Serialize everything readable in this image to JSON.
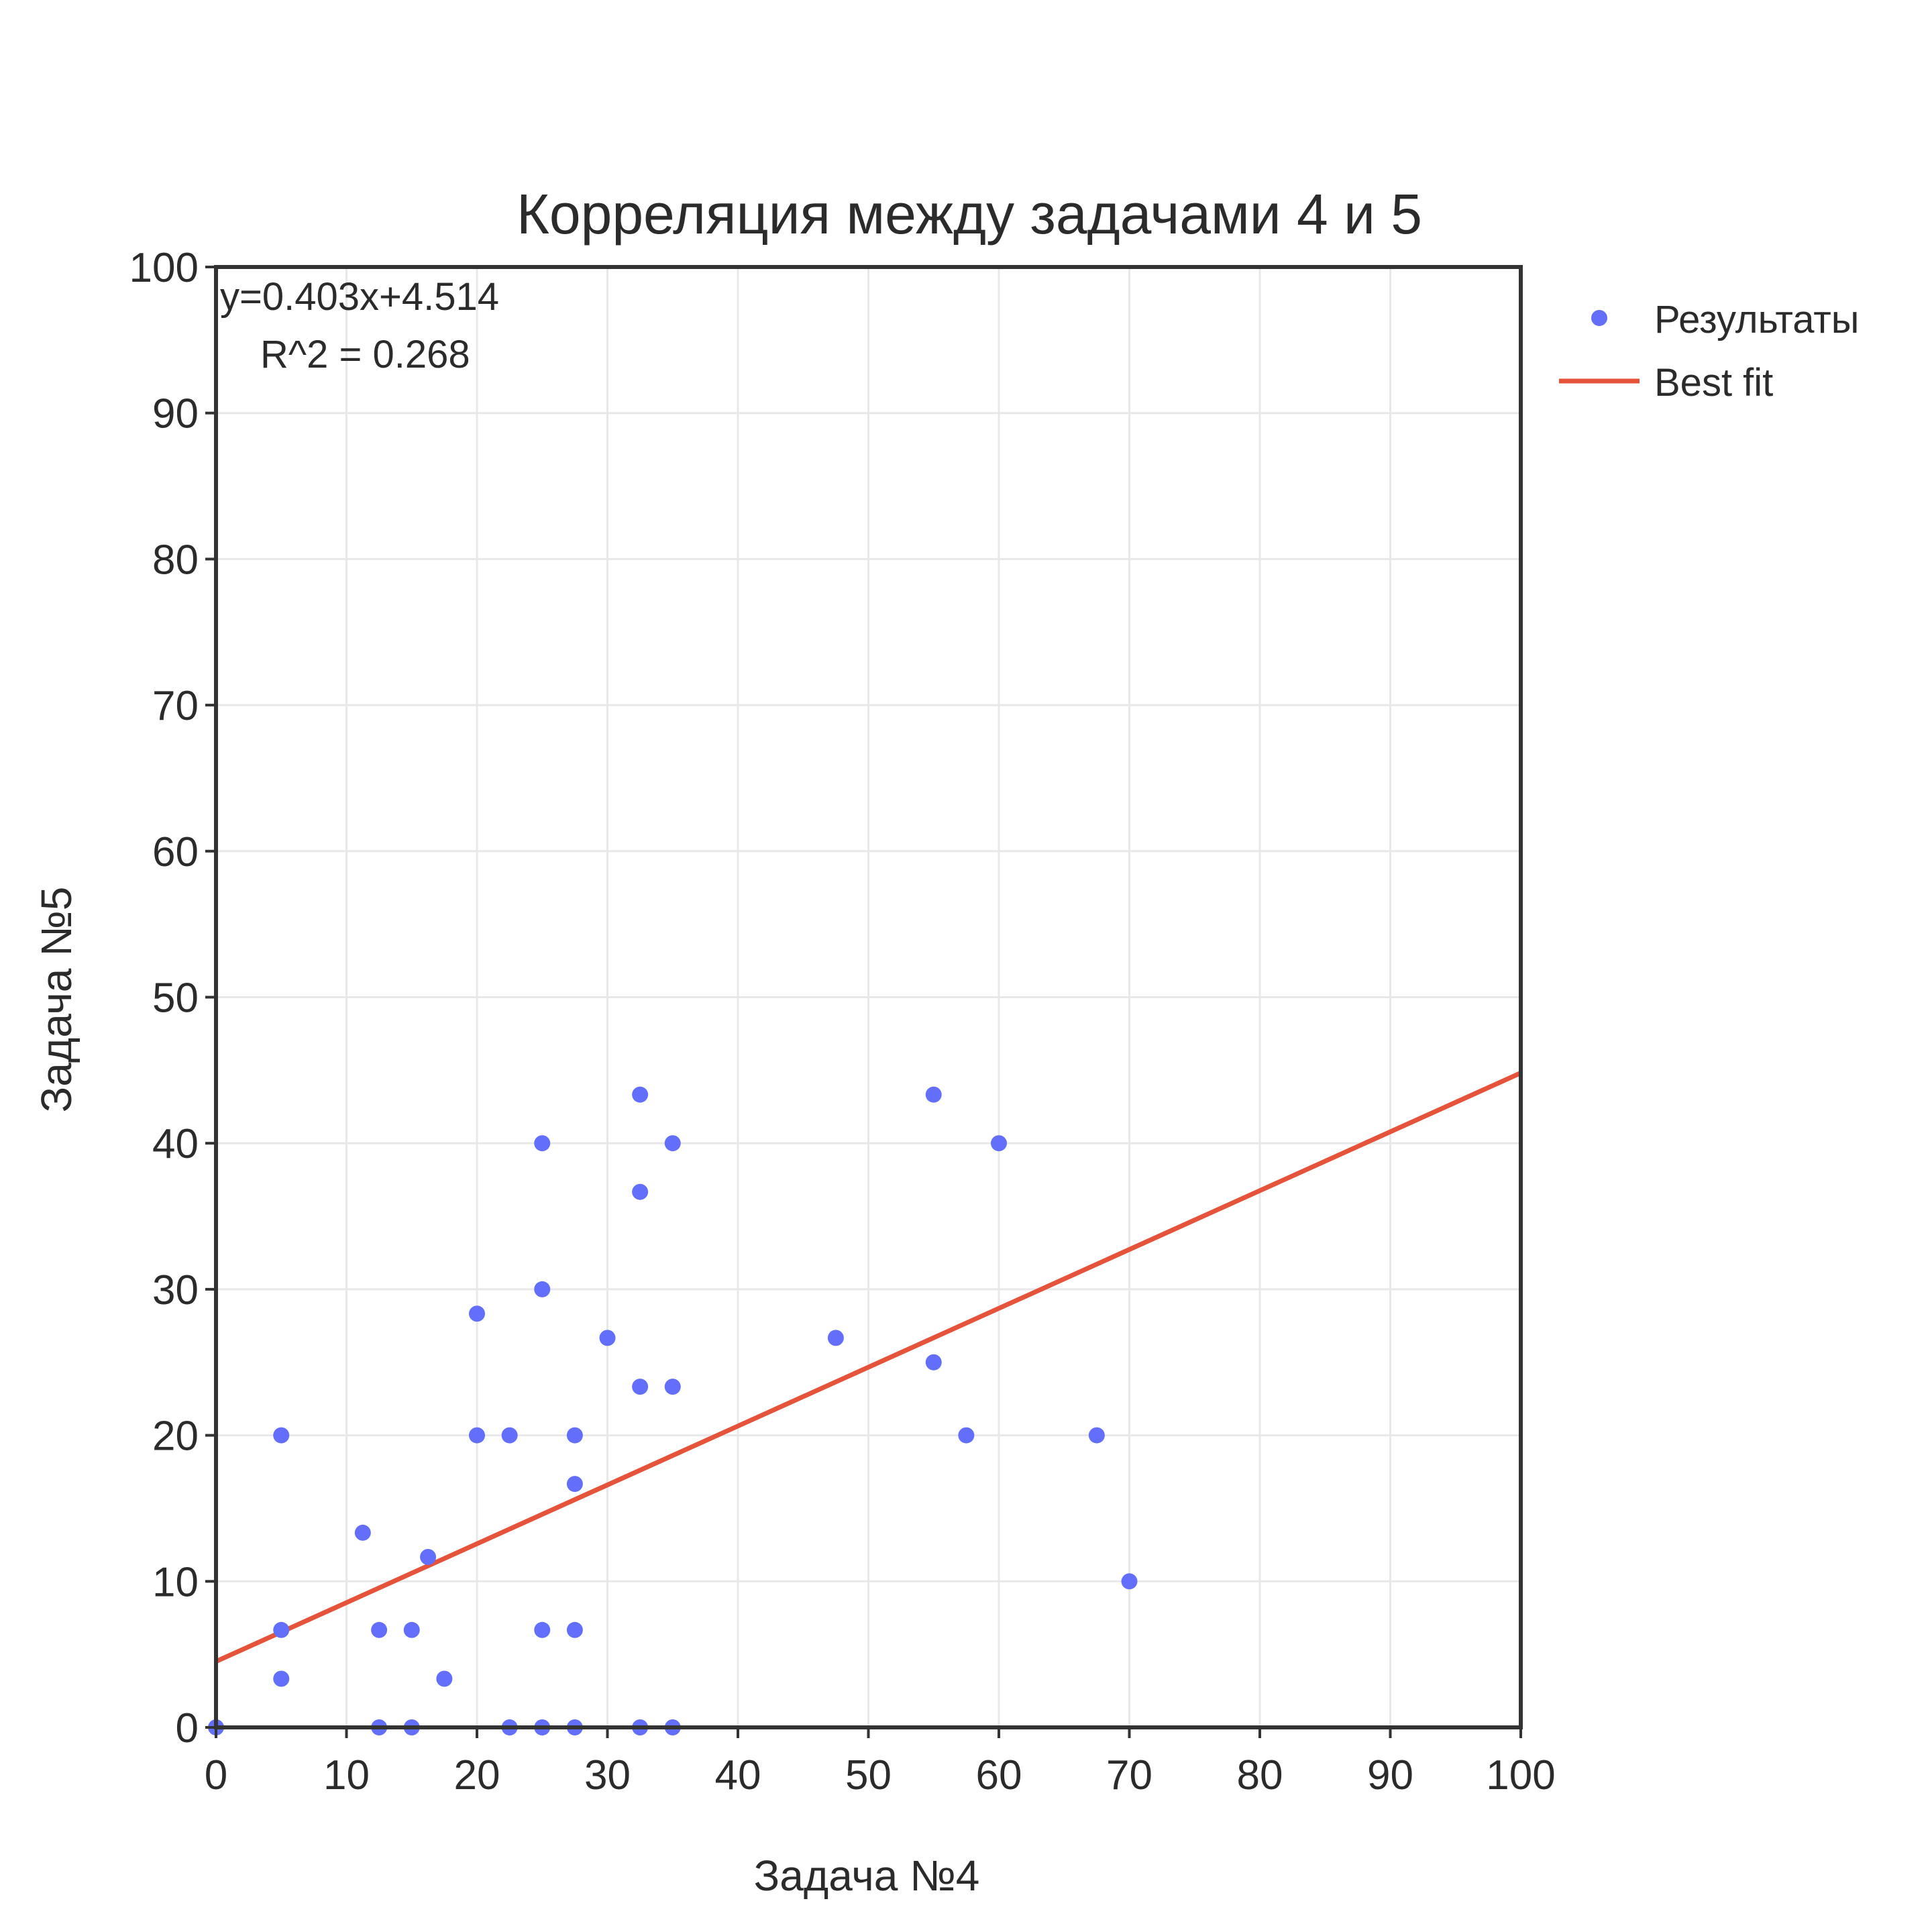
{
  "chart_data": {
    "type": "scatter",
    "title": "Корреляция между задачами 4 и 5",
    "xlabel": "Задача №4",
    "ylabel": "Задача №5",
    "xlim": [
      0,
      100
    ],
    "ylim": [
      0,
      100
    ],
    "xticks": [
      "0",
      "10",
      "20",
      "30",
      "40",
      "50",
      "60",
      "70",
      "80",
      "90",
      "100"
    ],
    "yticks": [
      "0",
      "10",
      "20",
      "30",
      "40",
      "50",
      "60",
      "70",
      "80",
      "90",
      "100"
    ],
    "grid": true,
    "legend_position": "top-right, outside plot",
    "annotation": {
      "equation": "y=0.403x+4.514",
      "r2": "R^2 = 0.268"
    },
    "series": [
      {
        "name": "Результаты",
        "type": "scatter",
        "color": "#636efa",
        "points": [
          [
            0,
            0
          ],
          [
            5,
            20
          ],
          [
            5,
            6.67
          ],
          [
            5,
            3.33
          ],
          [
            11.25,
            13.33
          ],
          [
            12.5,
            6.67
          ],
          [
            12.5,
            0
          ],
          [
            15,
            6.67
          ],
          [
            15,
            0
          ],
          [
            16.25,
            11.67
          ],
          [
            17.5,
            3.33
          ],
          [
            20,
            28.33
          ],
          [
            20,
            20
          ],
          [
            22.5,
            20
          ],
          [
            22.5,
            0
          ],
          [
            25,
            40
          ],
          [
            25,
            30
          ],
          [
            25,
            6.67
          ],
          [
            25,
            0
          ],
          [
            27.5,
            20
          ],
          [
            27.5,
            16.67
          ],
          [
            27.5,
            6.67
          ],
          [
            27.5,
            0
          ],
          [
            30,
            26.67
          ],
          [
            32.5,
            43.33
          ],
          [
            32.5,
            36.67
          ],
          [
            32.5,
            23.33
          ],
          [
            32.5,
            0
          ],
          [
            35,
            40
          ],
          [
            35,
            23.33
          ],
          [
            35,
            0
          ],
          [
            47.5,
            26.67
          ],
          [
            55,
            43.33
          ],
          [
            55,
            25
          ],
          [
            57.5,
            20
          ],
          [
            60,
            40
          ],
          [
            67.5,
            20
          ],
          [
            70,
            10
          ]
        ]
      },
      {
        "name": "Best fit",
        "type": "line",
        "color": "#e4533a",
        "slope": 0.403,
        "intercept": 4.514
      }
    ]
  }
}
